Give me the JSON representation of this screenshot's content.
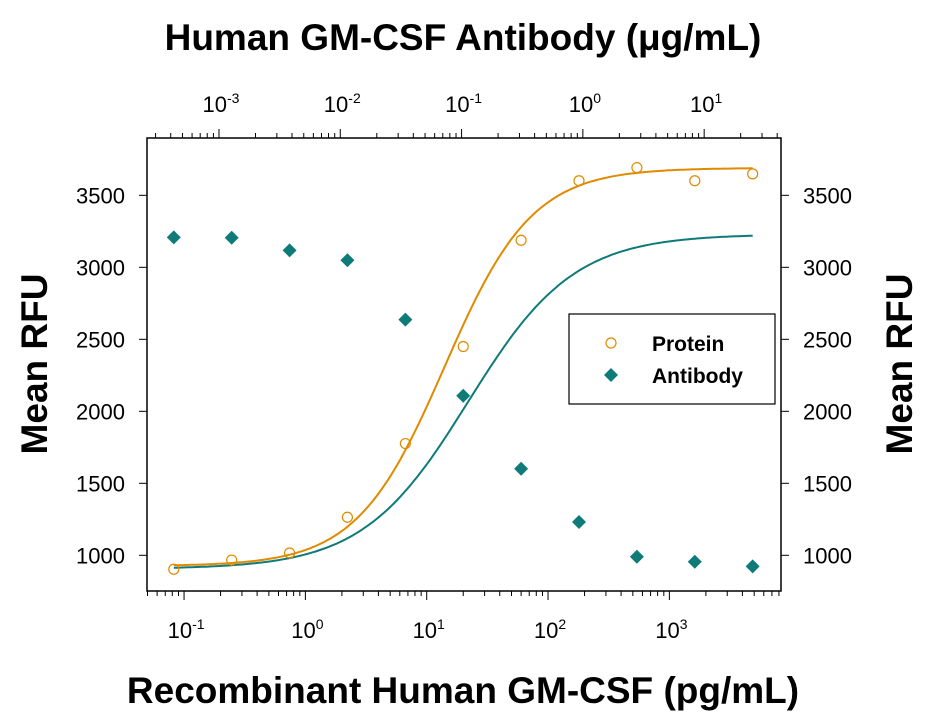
{
  "chart_data": {
    "type": "scatter",
    "title": "Human GM-CSF Antibody (μg/mL)",
    "xlabel": "Recombinant Human GM-CSF (pg/mL)",
    "ylabel_left": "Mean RFU",
    "ylabel_right": "Mean RFU",
    "x_scale": "log",
    "xlim": [
      0.0495,
      8320
    ],
    "x_ticks": [
      {
        "base": "10",
        "exp": "-1"
      },
      {
        "base": "10",
        "exp": "0"
      },
      {
        "base": "10",
        "exp": "1"
      },
      {
        "base": "10",
        "exp": "2"
      },
      {
        "base": "10",
        "exp": "3"
      }
    ],
    "top_x_scale": "log",
    "top_xlim": [
      0.000255,
      43.0
    ],
    "top_x_ticks": [
      {
        "base": "10",
        "exp": "-3"
      },
      {
        "base": "10",
        "exp": "-2"
      },
      {
        "base": "10",
        "exp": "-1"
      },
      {
        "base": "10",
        "exp": "0"
      },
      {
        "base": "10",
        "exp": "1"
      }
    ],
    "ylim": [
      752,
      3898
    ],
    "y_ticks": [
      "1000",
      "1500",
      "2000",
      "2500",
      "3000",
      "3500"
    ],
    "grid": false,
    "legend_position": "right",
    "series": [
      {
        "name": "Protein",
        "marker": "open-circle",
        "color": "#E08A00",
        "x": [
          0.0823,
          0.247,
          0.741,
          2.22,
          6.67,
          20,
          60,
          180,
          540,
          1620,
          4860
        ],
        "y": [
          903,
          967,
          1016,
          1264,
          1776,
          2450,
          3188,
          3601,
          3692,
          3601,
          3649
        ],
        "fit": {
          "bottom": 925,
          "top": 3690,
          "ec50": 14,
          "hill": 1.2
        }
      },
      {
        "name": "Antibody",
        "marker": "filled-diamond",
        "color": "#0E7B78",
        "x": [
          0.0823,
          0.247,
          0.741,
          2.22,
          6.67,
          20,
          60,
          180,
          540,
          1620,
          4860
        ],
        "y": [
          3208,
          3205,
          3118,
          3049,
          2637,
          2108,
          1601,
          1231,
          990,
          955,
          923
        ],
        "fit": {
          "bottom": 905,
          "top": 3230,
          "ec50": 22,
          "hill": 1.0
        }
      }
    ]
  }
}
